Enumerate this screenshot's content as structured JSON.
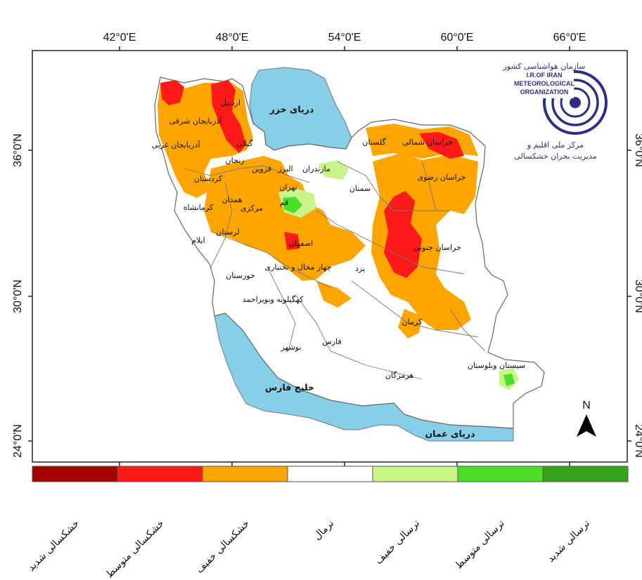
{
  "axes": {
    "longitude_ticks": [
      "42°0'E",
      "48°0'E",
      "54°0'E",
      "60°0'E",
      "66°0'E"
    ],
    "latitude_ticks": [
      "36°0'N",
      "30°0'N",
      "24°0'N"
    ]
  },
  "water_bodies": {
    "caspian": "دریای خزر",
    "persian_gulf": "خلیج فارس",
    "oman_sea": "دریای عمان"
  },
  "provinces": [
    "اردبیل",
    "آذربایجان شرقی",
    "آذربایجان غربی",
    "گیلان",
    "زنجان",
    "کردستان",
    "مازندران",
    "البرز",
    "قزوین",
    "تهران",
    "همدان",
    "کرمانشاه",
    "قم",
    "مرکزی",
    "لرستان",
    "ایلام",
    "اصفهان",
    "خوزستان",
    "چهار محال و بختیاری",
    "کهگیلویه وبویراحمد",
    "سمنان",
    "یزد",
    "خراسان شمالی",
    "گلستان",
    "خراسان رضوی",
    "خراسان جنوبی",
    "کرمان",
    "فارس",
    "بوشهر",
    "هرمزگان",
    "سیستان وبلوستان"
  ],
  "logo": {
    "org_fa_small": "سازمان هواشناسی کشور",
    "line1": "I.R.OF IRAN",
    "line2": "METEOROLOGICAL",
    "line3": "ORGANIZATION",
    "center_fa_1": "مرکز ملی اقلیم و",
    "center_fa_2": "مدیریت بحران خشکسالی"
  },
  "north_arrow": "N",
  "legend": [
    {
      "label": "خشکسالی شدید",
      "color": "#a50000"
    },
    {
      "label": "خشکسالی متوسط",
      "color": "#ff1a1a"
    },
    {
      "label": "خشکسالی خفیف",
      "color": "#ffa500"
    },
    {
      "label": "نرمال",
      "color": "#ffffff"
    },
    {
      "label": "ترسالی خفیف",
      "color": "#c8f58a"
    },
    {
      "label": "ترسالی متوسط",
      "color": "#4dde2a"
    },
    {
      "label": "ترسالی شدید",
      "color": "#37a31b"
    }
  ]
}
